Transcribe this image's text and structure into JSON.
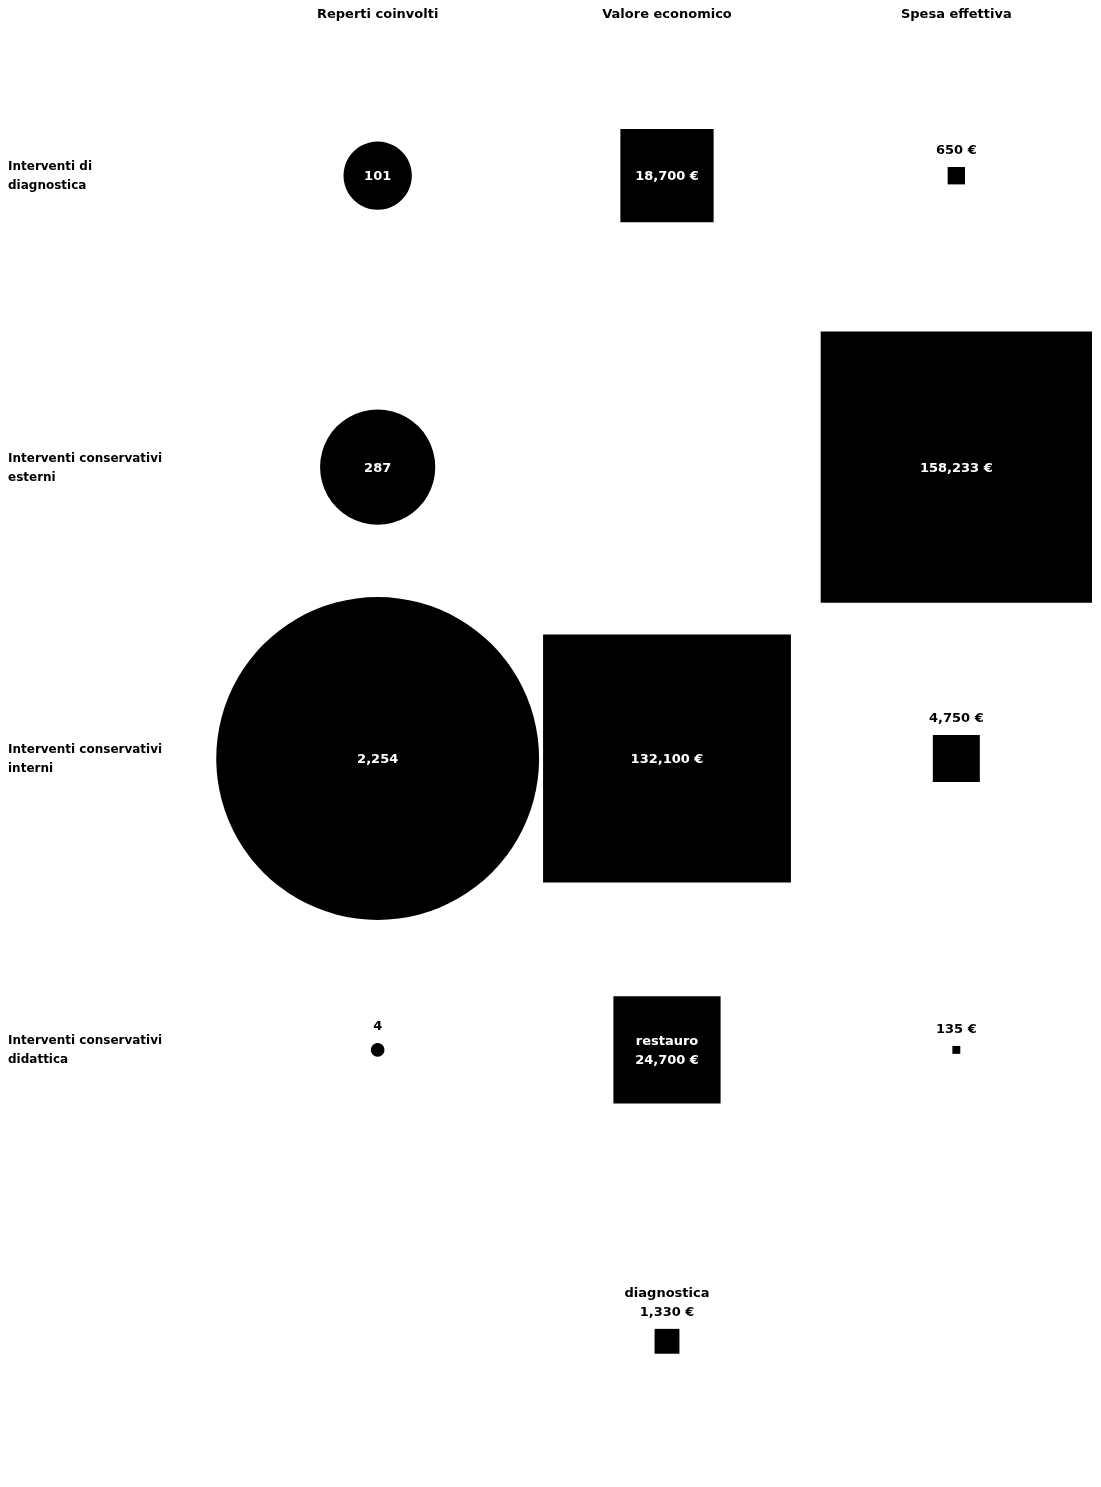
{
  "chart_data": {
    "type": "other",
    "categories": [
      "Reperti coinvolti",
      "Valore economico",
      "Spesa effettiva"
    ],
    "y_categories": [
      "Interventi di diagnostica",
      "Interventi conservativi esterni",
      "Interventi conservativi interni",
      "Interventi conservativi didattica",
      null
    ],
    "series": [
      {
        "color": "#000000",
        "values": [
          101,
          18700,
          650
        ],
        "value_labels": [
          "101",
          "18,700 €",
          "650 €"
        ]
      },
      {
        "color": "#000000",
        "values": [
          287,
          null,
          158233
        ],
        "value_labels": [
          "287",
          null,
          "158,233 €"
        ]
      },
      {
        "color": "#000000",
        "values": [
          2254,
          132100,
          4750
        ],
        "value_labels": [
          "2,254",
          "132,100 €",
          "4,750 €"
        ]
      },
      {
        "color": "#000000",
        "values": [
          4,
          24700,
          135
        ],
        "value_labels": [
          "4",
          "restauro\n24,700 €",
          "135 €"
        ]
      },
      {
        "color": "#000000",
        "values": [
          null,
          1330,
          null
        ],
        "value_labels": [
          null,
          "diagnostica\n1,330 €",
          null
        ]
      }
    ]
  }
}
